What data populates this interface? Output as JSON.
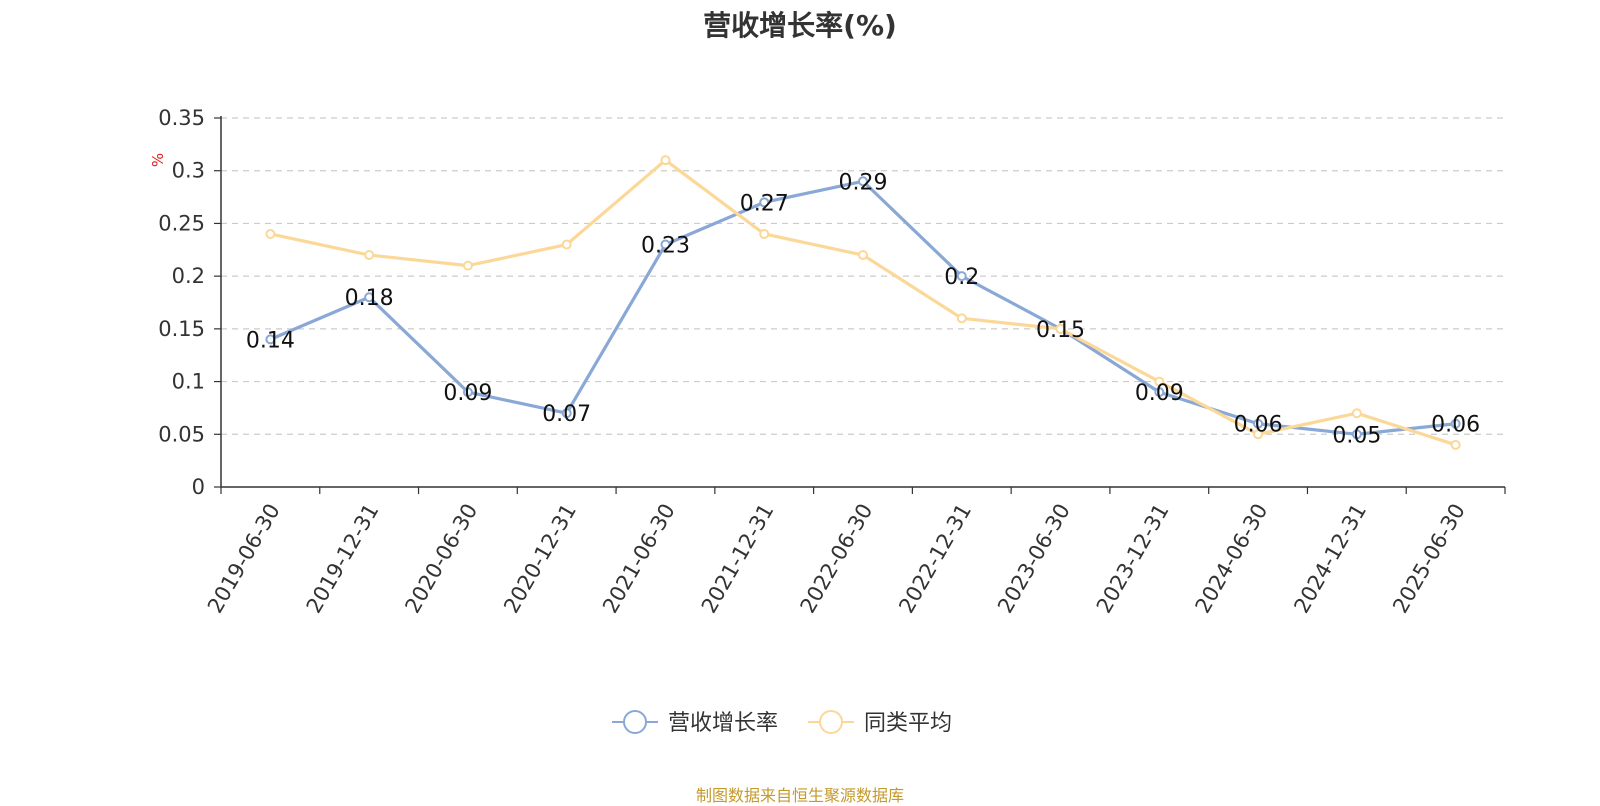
{
  "chart_data": {
    "type": "line",
    "title": "营收增长率(%)",
    "ylabel": "%",
    "xlabel": "",
    "categories": [
      "2019-06-30",
      "2019-12-31",
      "2020-06-30",
      "2020-12-31",
      "2021-06-30",
      "2021-12-31",
      "2022-06-30",
      "2022-12-31",
      "2023-06-30",
      "2023-12-31",
      "2024-06-30",
      "2024-12-31",
      "2025-06-30"
    ],
    "ylim": [
      0,
      0.35
    ],
    "yticks": [
      "0",
      "0.05",
      "0.1",
      "0.15",
      "0.2",
      "0.25",
      "0.3",
      "0.35"
    ],
    "grid": true,
    "legend_position": "bottom",
    "series": [
      {
        "name": "营收增长率",
        "color": "#8aa8d6",
        "show_labels": true,
        "values": [
          0.14,
          0.18,
          0.09,
          0.07,
          0.23,
          0.27,
          0.29,
          0.2,
          0.15,
          0.09,
          0.06,
          0.05,
          0.06
        ]
      },
      {
        "name": "同类平均",
        "color": "#fbd898",
        "show_labels": false,
        "values": [
          0.24,
          0.22,
          0.21,
          0.23,
          0.31,
          0.24,
          0.22,
          0.16,
          0.15,
          0.1,
          0.05,
          0.07,
          0.04
        ]
      }
    ],
    "ylabel_color": "#e02020"
  },
  "source": "制图数据来自恒生聚源数据库"
}
